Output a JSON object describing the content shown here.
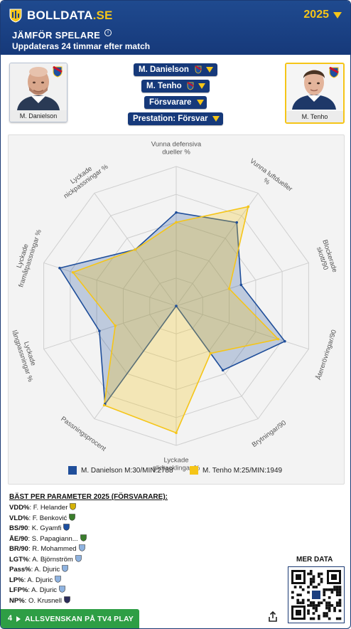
{
  "header": {
    "brand_main": "BOLLDATA",
    "brand_suffix": ".SE",
    "season": "2025",
    "title": "JÄMFÖR SPELARE",
    "info_glyph": "i",
    "subtitle": "Uppdateras 24 timmar efter match"
  },
  "players": {
    "left": {
      "name": "M. Danielson",
      "club_icon": "club-badge-icon"
    },
    "right": {
      "name": "M. Tenho",
      "club_icon": "club-badge-icon"
    }
  },
  "selectors": {
    "player1": "M. Danielson",
    "player2": "M. Tenho",
    "position": "Försvarare",
    "mode": "Prestation: Försvar"
  },
  "colors": {
    "series1": "#1f4e9a",
    "series2": "#f5c518",
    "header_bg": "#1b3f80",
    "accent": "#f5c518",
    "green": "#2e9e45"
  },
  "chart_data": {
    "type": "radar",
    "axes": [
      "Vunna defensiva dueller %",
      "Vunna luftdueller %",
      "Blockerade skott/90",
      "Återerövringar/90",
      "Brytningar/90",
      "Lyckade glidtacklingar %",
      "Passningsprocent",
      "Lyckade långpassningar %",
      "Lyckade framåtpassningar %",
      "Lyckade nickpassningar %"
    ],
    "range": [
      0,
      100
    ],
    "rings": 5,
    "grid": true,
    "legend_position": "bottom",
    "series": [
      {
        "name": "M. Danielson M:30/MIN:2788",
        "values": [
          67,
          74,
          49,
          82,
          57,
          0,
          87,
          58,
          88,
          50
        ]
      },
      {
        "name": "M. Tenho M:25/MIN:1949",
        "values": [
          60,
          88,
          40,
          77,
          42,
          91,
          88,
          46,
          78,
          50
        ]
      }
    ]
  },
  "best": {
    "title": "BÄST PER PARAMETER 2025 (FÖRSVARARE):",
    "rows": [
      {
        "key": "VDD%",
        "player": "F. Helander"
      },
      {
        "key": "VLD%",
        "player": "F. Benković"
      },
      {
        "key": "BS/90",
        "player": "K. Gyamfi"
      },
      {
        "key": "ÅE/90",
        "player": "S. Papagiann..."
      },
      {
        "key": "BR/90",
        "player": "R. Mohammed"
      },
      {
        "key": "LGT%",
        "player": "A. Björnström"
      },
      {
        "key": "Pass%",
        "player": "A. Djuric"
      },
      {
        "key": "LP%",
        "player": "A. Djuric"
      },
      {
        "key": "LFP%",
        "player": "A. Djuric"
      },
      {
        "key": "NP%",
        "player": "O. Krusnell"
      }
    ]
  },
  "more_data": "MER DATA",
  "bottom_bar": {
    "number": "4",
    "label": "ALLSVENSKAN PÅ TV4 PLAY"
  }
}
